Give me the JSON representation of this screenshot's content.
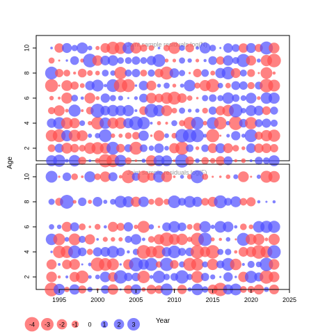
{
  "colors": {
    "negative": "#ff4d4d",
    "positive": "#4d4dff",
    "axis": "#000000",
    "panel_title": "#9a9a9a"
  },
  "chart_data": {
    "type": "scatter",
    "ylabel": "Age",
    "xlabel": "Year",
    "x_ticks": [
      1995,
      2000,
      2005,
      2010,
      2015,
      2020,
      2025
    ],
    "x_range": [
      1992,
      2025
    ],
    "panels": [
      {
        "title": "Joint sample residuals log(N)",
        "y_ticks": [
          2,
          4,
          6,
          8,
          10
        ],
        "y_range": [
          1,
          11
        ],
        "ages": [
          1,
          2,
          3,
          4,
          5,
          6,
          7,
          8,
          9,
          10
        ],
        "years": [
          1994,
          1995,
          1996,
          1997,
          1998,
          1999,
          2000,
          2001,
          2002,
          2003,
          2004,
          2005,
          2006,
          2007,
          2008,
          2009,
          2010,
          2011,
          2012,
          2013,
          2014,
          2015,
          2016,
          2017,
          2018,
          2019,
          2020,
          2021,
          2022,
          2023
        ]
      },
      {
        "title": "Joint sample residuals log(F)",
        "y_ticks": [
          2,
          4,
          6,
          8,
          10
        ],
        "y_range": [
          1,
          11
        ],
        "ages": [
          1,
          2,
          3,
          4,
          5,
          6,
          8,
          10
        ],
        "years": [
          1994,
          1995,
          1996,
          1997,
          1998,
          1999,
          2000,
          2001,
          2002,
          2003,
          2004,
          2005,
          2006,
          2007,
          2008,
          2009,
          2010,
          2011,
          2012,
          2013,
          2014,
          2015,
          2016,
          2017,
          2018,
          2019,
          2020,
          2021,
          2022,
          2023
        ]
      }
    ],
    "legend": {
      "values": [
        -4,
        -3,
        -2,
        -1,
        0,
        1,
        2,
        3
      ],
      "labels": [
        "-4",
        "-3",
        "-2",
        "-1",
        "0",
        "1",
        "2",
        "3"
      ]
    }
  }
}
